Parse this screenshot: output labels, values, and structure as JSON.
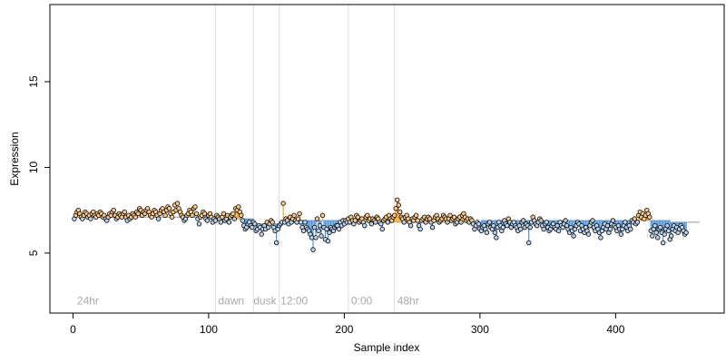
{
  "chart_data": {
    "type": "scatter",
    "title": "",
    "xlabel": "Sample index",
    "ylabel": "Expression",
    "xlim": [
      -17,
      480
    ],
    "ylim": [
      1.5,
      19.5
    ],
    "x_ticks": [
      0,
      100,
      200,
      300,
      400
    ],
    "y_ticks": [
      5,
      10,
      15
    ],
    "baseline_segments": [
      {
        "x0": 1,
        "x1": 105,
        "y": 7.1
      },
      {
        "x0": 106,
        "x1": 133,
        "y": 7.0
      },
      {
        "x0": 134,
        "x1": 152,
        "y": 6.7
      },
      {
        "x0": 153,
        "x1": 203,
        "y": 6.9
      },
      {
        "x0": 204,
        "x1": 237,
        "y": 6.8
      },
      {
        "x0": 238,
        "x1": 300,
        "y": 6.8
      },
      {
        "x0": 301,
        "x1": 440,
        "y": 6.9
      },
      {
        "x0": 441,
        "x1": 462,
        "y": 6.8
      }
    ],
    "vlines": [
      105,
      133,
      152,
      203,
      237
    ],
    "region_labels": [
      {
        "x": 3,
        "text": "24hr"
      },
      {
        "x": 107,
        "text": "dawn"
      },
      {
        "x": 133,
        "text": "dusk"
      },
      {
        "x": 153,
        "text": "12:00"
      },
      {
        "x": 205,
        "text": "0:00"
      },
      {
        "x": 239,
        "text": "48hr"
      }
    ],
    "colors": {
      "above": "#f5a623",
      "below": "#4a90d9",
      "point_fill_above": "#f8c98a",
      "point_fill_below": "#b9d3ef",
      "point_fill_neutral": "#c9c9c9",
      "guide": "#dddddd",
      "annotation": "#a9a9a9"
    },
    "series": [
      {
        "values": [
          7.0,
          7.2,
          7.4,
          7.5,
          7.3,
          7.1,
          7.0,
          7.2,
          7.4,
          7.3,
          7.1,
          7.2,
          7.0,
          7.3,
          7.4,
          7.2,
          7.1,
          7.3,
          7.2,
          7.4,
          7.3,
          7.1,
          7.2,
          7.0,
          6.9,
          7.1,
          7.3,
          7.2,
          7.4,
          7.5,
          7.2,
          7.0,
          7.1,
          7.3,
          7.2,
          7.1,
          7.3,
          7.4,
          7.1,
          6.9,
          7.2,
          7.0,
          7.1,
          7.3,
          7.2,
          7.1,
          7.4,
          7.3,
          7.6,
          7.5,
          7.2,
          7.4,
          7.3,
          7.5,
          7.6,
          7.4,
          7.2,
          7.1,
          7.3,
          7.5,
          7.4,
          7.2,
          7.0,
          7.3,
          7.5,
          7.6,
          7.4,
          7.2,
          7.5,
          7.7,
          7.6,
          7.3,
          7.1,
          7.4,
          7.8,
          7.5,
          7.9,
          7.6,
          7.4,
          7.2,
          7.1,
          6.9,
          7.0,
          7.2,
          7.3,
          7.5,
          7.4,
          7.2,
          7.6,
          7.7,
          7.3,
          7.0,
          6.7,
          7.1,
          7.2,
          7.4,
          7.3,
          7.0,
          6.9,
          7.2,
          7.3,
          7.1,
          6.8,
          7.0,
          6.9,
          7.2,
          7.1,
          7.0,
          6.8,
          7.1,
          7.3,
          6.9,
          7.0,
          7.2,
          6.8,
          7.1,
          7.2,
          7.3,
          7.0,
          7.6,
          7.5,
          7.7,
          7.4,
          7.2,
          6.9,
          6.6,
          6.4,
          6.5,
          6.7,
          6.8,
          6.6,
          6.5,
          6.8,
          6.7,
          6.3,
          6.4,
          6.6,
          6.5,
          6.1,
          6.4,
          6.6,
          6.4,
          6.8,
          6.5,
          6.7,
          6.9,
          6.8,
          6.5,
          6.3,
          5.6,
          6.4,
          6.6,
          6.7,
          6.8,
          7.9,
          6.8,
          7.0,
          6.9,
          6.7,
          7.1,
          6.8,
          7.0,
          7.2,
          6.9,
          6.8,
          7.0,
          7.3,
          6.8,
          6.5,
          6.3,
          6.8,
          6.5,
          6.4,
          6.3,
          6.1,
          5.9,
          5.2,
          6.5,
          5.9,
          7.0,
          6.3,
          6.6,
          6.0,
          7.2,
          6.5,
          5.8,
          6.4,
          5.7,
          6.2,
          6.5,
          6.4,
          6.3,
          6.5,
          6.6,
          6.6,
          6.4,
          6.8,
          6.6,
          6.9,
          6.7,
          6.9,
          6.8,
          7.0,
          6.8,
          7.1,
          6.9,
          6.7,
          6.9,
          7.2,
          7.1,
          6.8,
          6.9,
          7.0,
          6.8,
          6.6,
          7.1,
          7.2,
          6.9,
          7.0,
          6.7,
          7.0,
          6.9,
          6.8,
          7.1,
          7.0,
          6.8,
          6.7,
          6.4,
          6.9,
          7.0,
          7.1,
          6.8,
          7.2,
          7.0,
          6.9,
          7.1,
          7.2,
          7.6,
          8.1,
          7.8,
          7.4,
          7.1,
          7.0,
          6.8,
          7.1,
          7.2,
          7.0,
          6.8,
          6.6,
          7.0,
          6.9,
          7.1,
          7.2,
          6.9,
          6.6,
          6.4,
          6.9,
          7.0,
          7.1,
          6.8,
          7.0,
          7.1,
          7.0,
          6.8,
          6.5,
          6.9,
          7.1,
          7.2,
          7.0,
          6.8,
          6.9,
          7.0,
          7.2,
          7.1,
          7.0,
          6.8,
          7.0,
          7.2,
          6.9,
          7.0,
          7.1,
          6.7,
          6.8,
          7.0,
          7.1,
          6.8,
          7.2,
          7.3,
          7.1,
          6.9,
          7.0,
          6.8,
          7.0,
          6.9,
          6.7,
          6.4,
          6.6,
          6.8,
          6.7,
          6.4,
          6.3,
          6.5,
          6.6,
          6.4,
          6.2,
          6.7,
          6.8,
          6.5,
          6.4,
          6.6,
          6.2,
          5.9,
          6.5,
          6.8,
          6.6,
          6.3,
          6.5,
          6.9,
          6.7,
          6.6,
          7.0,
          6.8,
          6.5,
          6.7,
          6.8,
          6.6,
          6.5,
          6.3,
          6.6,
          6.4,
          6.8,
          6.9,
          6.5,
          6.7,
          6.6,
          5.6,
          6.5,
          6.8,
          7.1,
          6.9,
          6.7,
          6.6,
          6.8,
          7.0,
          6.9,
          6.6,
          6.4,
          6.7,
          6.8,
          6.5,
          6.3,
          6.4,
          6.6,
          6.7,
          6.5,
          6.4,
          6.6,
          6.3,
          6.8,
          6.6,
          6.5,
          6.7,
          6.9,
          6.6,
          6.4,
          6.2,
          6.5,
          6.3,
          6.0,
          6.4,
          6.6,
          6.8,
          6.7,
          6.3,
          6.6,
          6.4,
          6.2,
          6.5,
          6.3,
          6.1,
          6.6,
          6.8,
          6.9,
          6.5,
          6.3,
          6.6,
          6.4,
          6.2,
          5.9,
          6.3,
          6.5,
          6.7,
          6.4,
          6.6,
          6.2,
          6.4,
          6.7,
          6.9,
          6.6,
          6.5,
          6.3,
          6.6,
          6.4,
          6.1,
          6.4,
          6.6,
          6.8,
          6.5,
          6.3,
          6.6,
          6.4,
          6.9,
          6.8,
          7.0,
          6.7,
          6.8,
          7.2,
          7.4,
          7.1,
          7.3,
          7.0,
          7.2,
          7.5,
          7.3,
          7.1,
          6.3,
          6.0,
          6.4,
          6.6,
          6.2,
          5.9,
          6.4,
          6.5,
          6.2,
          5.6,
          6.1,
          6.4,
          6.6,
          6.3,
          5.8,
          6.0,
          6.4,
          6.6,
          6.3,
          6.5,
          6.2,
          6.4,
          6.6,
          6.5,
          6.3,
          6.1,
          6.2
        ]
      }
    ]
  }
}
